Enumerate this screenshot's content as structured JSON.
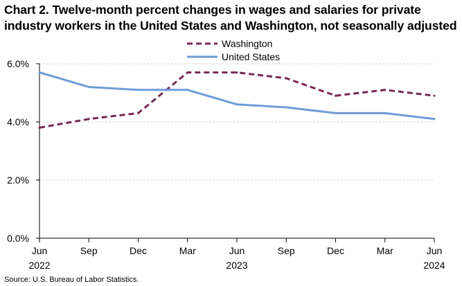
{
  "chart_data": {
    "type": "line",
    "title_lines": [
      "Chart 2. Twelve-month percent changes in wages and salaries for private",
      "industry workers in the United States and Washington, not seasonally adjusted"
    ],
    "x": [
      "Jun 2022",
      "Sep 2022",
      "Dec 2022",
      "Mar 2023",
      "Jun 2023",
      "Sep 2023",
      "Dec 2023",
      "Mar 2024",
      "Jun 2024"
    ],
    "x_tick_labels": [
      "Jun",
      "Sep",
      "Dec",
      "Mar",
      "Jun",
      "Sep",
      "Dec",
      "Mar",
      "Jun"
    ],
    "x_year_labels": [
      {
        "index": 0,
        "label": "2022"
      },
      {
        "index": 4,
        "label": "2023"
      },
      {
        "index": 8,
        "label": "2024"
      }
    ],
    "series": [
      {
        "name": "Washington",
        "color": "#772953",
        "style": "dashed",
        "values": [
          3.8,
          4.1,
          4.3,
          5.7,
          5.7,
          5.5,
          4.9,
          5.1,
          4.9
        ]
      },
      {
        "name": "United States",
        "color": "#6f9bd8",
        "style": "solid",
        "values": [
          5.7,
          5.2,
          5.1,
          5.1,
          4.6,
          4.5,
          4.3,
          4.3,
          4.1
        ]
      }
    ],
    "ylim": [
      0,
      6
    ],
    "y_ticks": [
      0,
      2,
      4,
      6
    ],
    "y_tick_labels": [
      "0.0%",
      "2.0%",
      "4.0%",
      "6.0%"
    ],
    "grid": true,
    "legend_position": "top-center",
    "xlabel": "",
    "ylabel": ""
  },
  "footer": {
    "source": "Source: U.S. Bureau of Labor Statistics."
  }
}
